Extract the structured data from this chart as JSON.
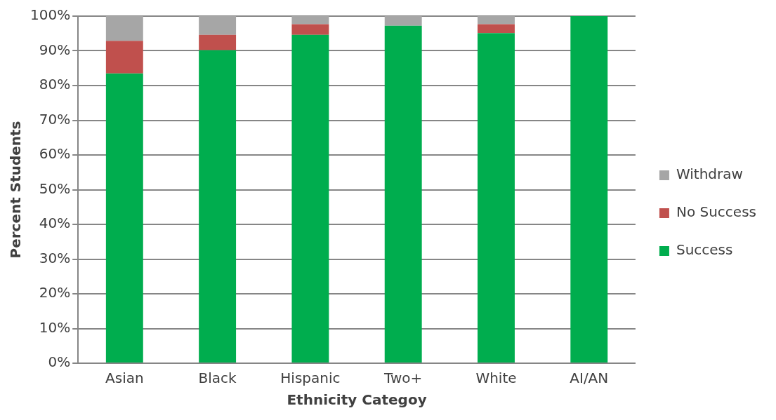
{
  "chart_data": {
    "type": "bar",
    "stacked": true,
    "xlabel": "Ethnicity Categoy",
    "ylabel": "Percent Students",
    "categories": [
      "Asian",
      "Black",
      "Hispanic",
      "Two+",
      "White",
      "AI/AN"
    ],
    "series": [
      {
        "name": "Success",
        "color": "#00ad4e",
        "values": [
          83.5,
          90.2,
          94.6,
          97.2,
          95.1,
          100
        ]
      },
      {
        "name": "No Success",
        "color": "#c0504d",
        "values": [
          9.4,
          4.4,
          3.1,
          0,
          2.6,
          0
        ]
      },
      {
        "name": "Withdraw",
        "color": "#a6a6a6",
        "values": [
          7.1,
          5.4,
          2.3,
          2.8,
          2.3,
          0
        ]
      }
    ],
    "ylim": [
      0,
      100
    ],
    "yticks": [
      {
        "value": 0,
        "label": "0%"
      },
      {
        "value": 10,
        "label": "10%"
      },
      {
        "value": 20,
        "label": "20%"
      },
      {
        "value": 30,
        "label": "30%"
      },
      {
        "value": 40,
        "label": "40%"
      },
      {
        "value": 50,
        "label": "50%"
      },
      {
        "value": 60,
        "label": "60%"
      },
      {
        "value": 70,
        "label": "70%"
      },
      {
        "value": 80,
        "label": "80%"
      },
      {
        "value": 90,
        "label": "90%"
      },
      {
        "value": 100,
        "label": "100%"
      }
    ],
    "grid": "y",
    "legend": "right"
  }
}
